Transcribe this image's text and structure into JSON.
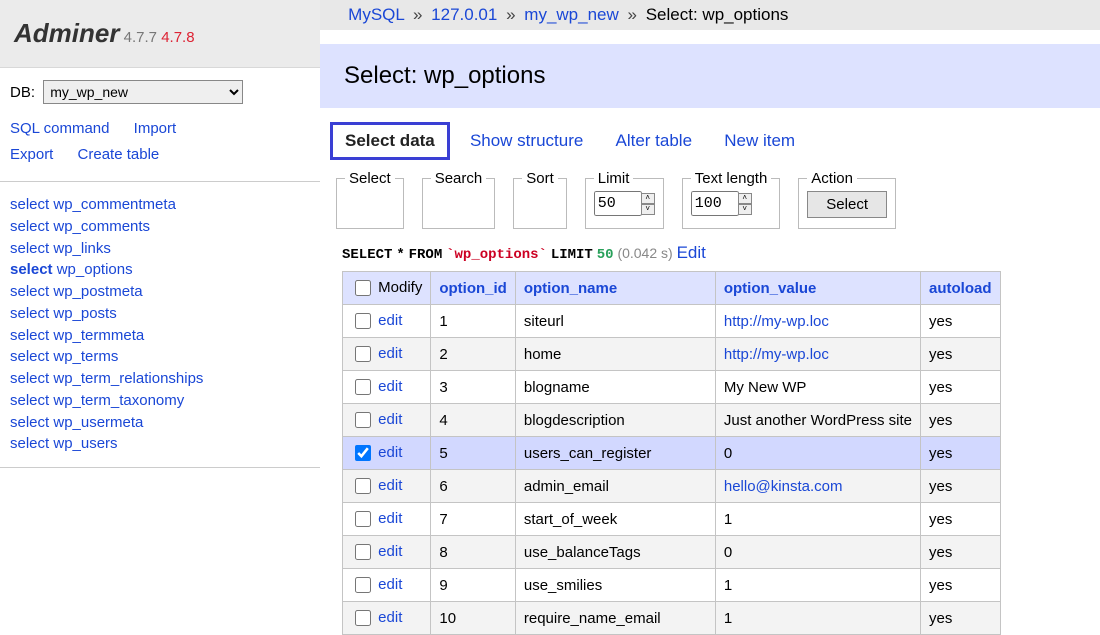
{
  "brand": {
    "name": "Adminer",
    "version": "4.7.7",
    "new_version": "4.7.8"
  },
  "db_label": "DB:",
  "db_selected": "my_wp_new",
  "sidebar_links": {
    "sql_command": "SQL command",
    "import": "Import",
    "export": "Export",
    "create_table": "Create table"
  },
  "tables": [
    {
      "name": "wp_commentmeta",
      "active": false
    },
    {
      "name": "wp_comments",
      "active": false
    },
    {
      "name": "wp_links",
      "active": false
    },
    {
      "name": "wp_options",
      "active": true
    },
    {
      "name": "wp_postmeta",
      "active": false
    },
    {
      "name": "wp_posts",
      "active": false
    },
    {
      "name": "wp_termmeta",
      "active": false
    },
    {
      "name": "wp_terms",
      "active": false
    },
    {
      "name": "wp_term_relationships",
      "active": false
    },
    {
      "name": "wp_term_taxonomy",
      "active": false
    },
    {
      "name": "wp_usermeta",
      "active": false
    },
    {
      "name": "wp_users",
      "active": false
    }
  ],
  "select_kw": "select",
  "breadcrumb": {
    "driver": "MySQL",
    "host": "127.0.01",
    "db": "my_wp_new",
    "page": "Select: wp_options",
    "sep": "»"
  },
  "page_title": "Select: wp_options",
  "tabs": {
    "select_data": "Select data",
    "show_structure": "Show structure",
    "alter_table": "Alter table",
    "new_item": "New item"
  },
  "fieldsets": {
    "select": "Select",
    "search": "Search",
    "sort": "Sort",
    "limit": "Limit",
    "text_length": "Text length",
    "action": "Action",
    "limit_value": "50",
    "textlen_value": "100",
    "action_button": "Select"
  },
  "query": {
    "select": "SELECT",
    "star": "*",
    "from": "FROM",
    "table": "`wp_options`",
    "limit": "LIMIT",
    "num": "50",
    "time": "(0.042 s)",
    "edit": "Edit"
  },
  "columns": {
    "modify": "Modify",
    "option_id": "option_id",
    "option_name": "option_name",
    "option_value": "option_value",
    "autoload": "autoload"
  },
  "edit_label": "edit",
  "rows": [
    {
      "id": "1",
      "name": "siteurl",
      "value": "http://my-wp.loc",
      "link": true,
      "autoload": "yes",
      "checked": false
    },
    {
      "id": "2",
      "name": "home",
      "value": "http://my-wp.loc",
      "link": true,
      "autoload": "yes",
      "checked": false
    },
    {
      "id": "3",
      "name": "blogname",
      "value": "My New WP",
      "link": false,
      "autoload": "yes",
      "checked": false
    },
    {
      "id": "4",
      "name": "blogdescription",
      "value": "Just another WordPress site",
      "link": false,
      "autoload": "yes",
      "checked": false
    },
    {
      "id": "5",
      "name": "users_can_register",
      "value": "0",
      "link": false,
      "autoload": "yes",
      "checked": true
    },
    {
      "id": "6",
      "name": "admin_email",
      "value": "hello@kinsta.com",
      "link": true,
      "autoload": "yes",
      "checked": false
    },
    {
      "id": "7",
      "name": "start_of_week",
      "value": "1",
      "link": false,
      "autoload": "yes",
      "checked": false
    },
    {
      "id": "8",
      "name": "use_balanceTags",
      "value": "0",
      "link": false,
      "autoload": "yes",
      "checked": false
    },
    {
      "id": "9",
      "name": "use_smilies",
      "value": "1",
      "link": false,
      "autoload": "yes",
      "checked": false
    },
    {
      "id": "10",
      "name": "require_name_email",
      "value": "1",
      "link": false,
      "autoload": "yes",
      "checked": false
    }
  ]
}
